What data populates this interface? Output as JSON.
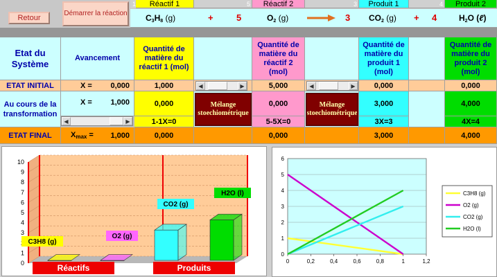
{
  "toolbar": {
    "back_label": "Retour",
    "start_label": "Démarrer la réaction"
  },
  "header": {
    "col_num_1": "1",
    "col_num_5": "5",
    "col_num_3": "3",
    "col_num_4": "4",
    "reactif1": "Réactif 1",
    "reactif2": "Réactif 2",
    "produit1": "Produit 1",
    "produit2": "Produit 2",
    "eq_c3h8_main": "C",
    "eq_c3h8_3": "3",
    "eq_c3h8_h": "H",
    "eq_c3h8_8": "8",
    "eq_c3h8_state": " (g)",
    "plus1": "+",
    "coef_o2": "5",
    "eq_o2_main": "O",
    "eq_o2_2": "2",
    "eq_o2_state": " (g)",
    "coef_co2": "3",
    "eq_co2_main": "CO",
    "eq_co2_2": "2",
    "eq_co2_state": " (g)",
    "plus2": "+",
    "coef_h2o": "4",
    "eq_h2o": "H",
    "eq_h2o_2": "2",
    "eq_h2o_o": "O (",
    "eq_h2o_l": "ℓ",
    "eq_h2o_close": ")"
  },
  "table": {
    "etat_systeme": "Etat du Système",
    "avancement": "Avancement",
    "qte_reactif1": "Quantité de matière du réactif 1   (mol)",
    "qte_reactif2": "Quantité de matière du réactif 2 (mol)",
    "qte_produit1": "Quantité de matière du produit 1 (mol)",
    "qte_produit2": "Quantité de matière du produit 2 (mol)",
    "etat_initial": "ETAT INITIAL",
    "x_eq_initial": "X =",
    "x_val_initial": "0,000",
    "r1_initial": "1,000",
    "r2_initial": "5,000",
    "p1_initial": "0,000",
    "p2_initial": "0,000",
    "au_cours": "Au cours de la transformation",
    "x_eq_cours": "X =",
    "x_val_cours": "1,000",
    "r1_cours": "0,000",
    "r2_cours": "0,000",
    "p1_cours": "3,000",
    "p2_cours": "4,000",
    "melange1": "Mélange stoechiométrique",
    "melange2": "Mélange stoechiométrique",
    "r1_expr": "1-1X=0",
    "r2_expr": "5-5X=0",
    "p1_expr": "3X=3",
    "p2_expr": "4X=4",
    "etat_final": "ETAT FINAL",
    "xmax_label": "X",
    "xmax_sub": "max",
    "xmax_eq": " =",
    "xmax_val": "1,000",
    "r1_final": "0,000",
    "r2_final": "0,000",
    "p1_final": "3,000",
    "p2_final": "4,000"
  },
  "bar_chart": {
    "y_ticks": [
      "10",
      "9",
      "8",
      "7",
      "6",
      "5",
      "4",
      "3",
      "2",
      "1",
      "0"
    ],
    "ylim": [
      0,
      10
    ],
    "reactifs_label": "Réactifs",
    "produits_label": "Produits",
    "bars": [
      {
        "name": "C3H8 (g)",
        "value": 0.0,
        "color": "#ffff00"
      },
      {
        "name": "O2 (g)",
        "value": 0.0,
        "color": "#ff66ff"
      },
      {
        "name": "CO2 (g)",
        "value": 3.0,
        "color": "#33ffff"
      },
      {
        "name": "H2O (l)",
        "value": 4.0,
        "color": "#00dd00"
      }
    ]
  },
  "chart_data": {
    "type": "line",
    "x": [
      0,
      1
    ],
    "xlim": [
      0,
      1.2
    ],
    "ylim": [
      0,
      6
    ],
    "x_ticks": [
      "0",
      "0,2",
      "0,4",
      "0,6",
      "0,8",
      "1",
      "1,2"
    ],
    "y_ticks": [
      "0",
      "1",
      "2",
      "3",
      "4",
      "5",
      "6"
    ],
    "grid": true,
    "legend_position": "right",
    "series": [
      {
        "name": "C3H8 (g)",
        "values": [
          1,
          0
        ],
        "color": "#ffff33"
      },
      {
        "name": "O2 (g)",
        "values": [
          5,
          0
        ],
        "color": "#cc00cc"
      },
      {
        "name": "CO2 (g)",
        "values": [
          0,
          3
        ],
        "color": "#33eeee"
      },
      {
        "name": "H2O (l)",
        "values": [
          0,
          4
        ],
        "color": "#22cc22"
      }
    ]
  }
}
